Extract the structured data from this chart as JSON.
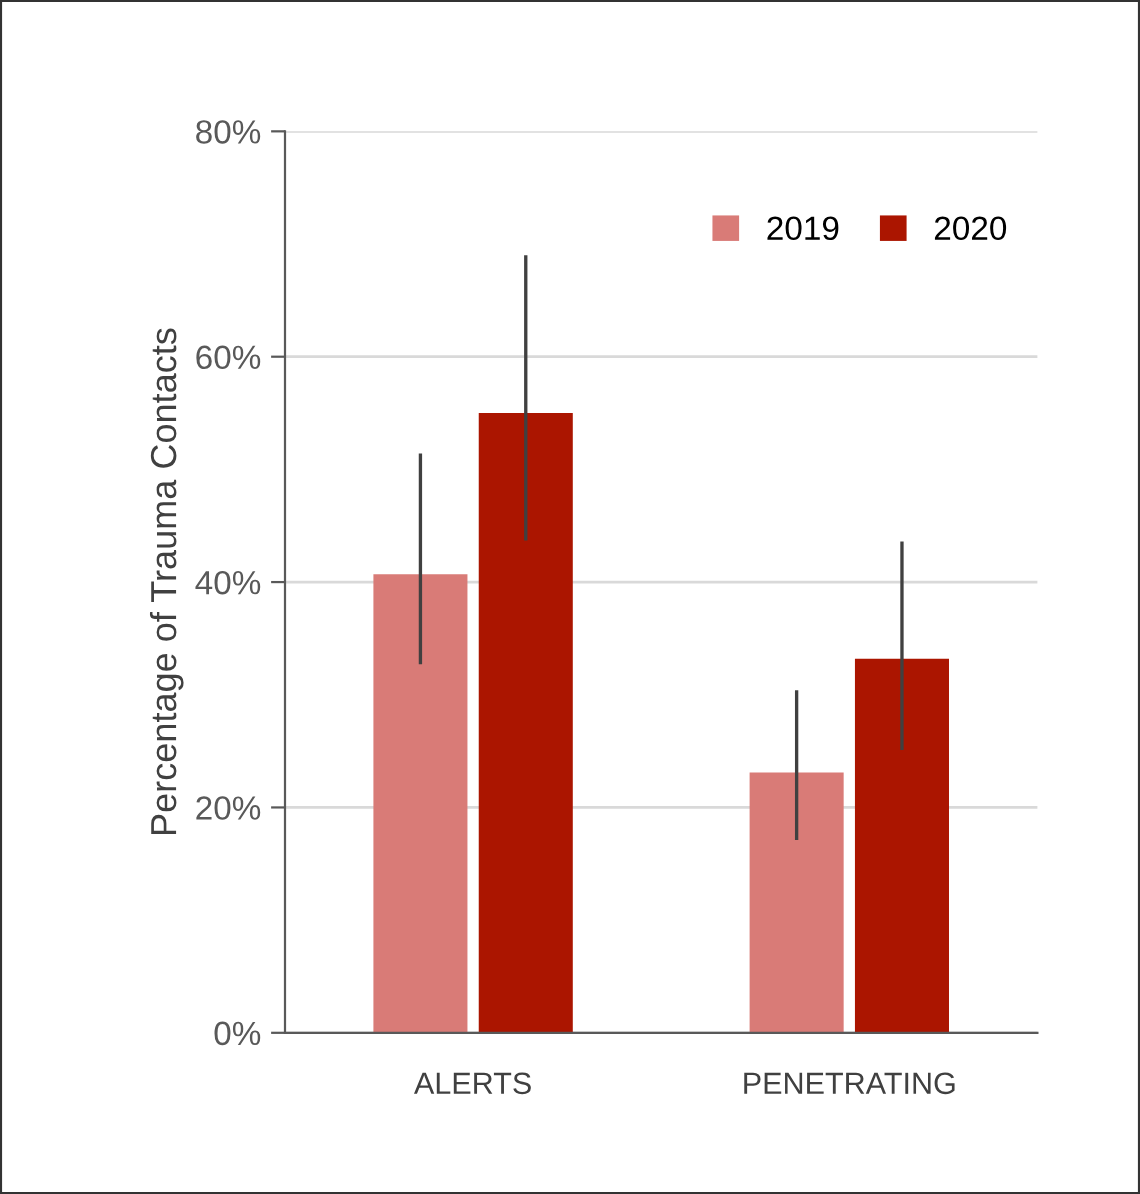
{
  "chart_data": {
    "type": "bar",
    "ylabel": "Percentage of Trauma Contacts",
    "categories": [
      "ALERTS",
      "PENETRATING"
    ],
    "series": [
      {
        "name": "2019",
        "color": "#d97b77",
        "values": [
          40.7,
          23.1
        ],
        "errors": [
          [
            32.7,
            51.4
          ],
          [
            17.1,
            30.4
          ]
        ]
      },
      {
        "name": "2020",
        "color": "#ab1500",
        "values": [
          55,
          33.2
        ],
        "errors": [
          [
            43.7,
            69
          ],
          [
            25.1,
            43.6
          ]
        ]
      }
    ],
    "ylim": [
      0,
      80
    ],
    "yticks": [
      {
        "value": 0,
        "label": "0%"
      },
      {
        "value": 20,
        "label": "20%"
      },
      {
        "value": 40,
        "label": "40%"
      },
      {
        "value": 60,
        "label": "60%"
      },
      {
        "value": 80,
        "label": "80%"
      }
    ],
    "grid": "y",
    "legend": "top right"
  }
}
